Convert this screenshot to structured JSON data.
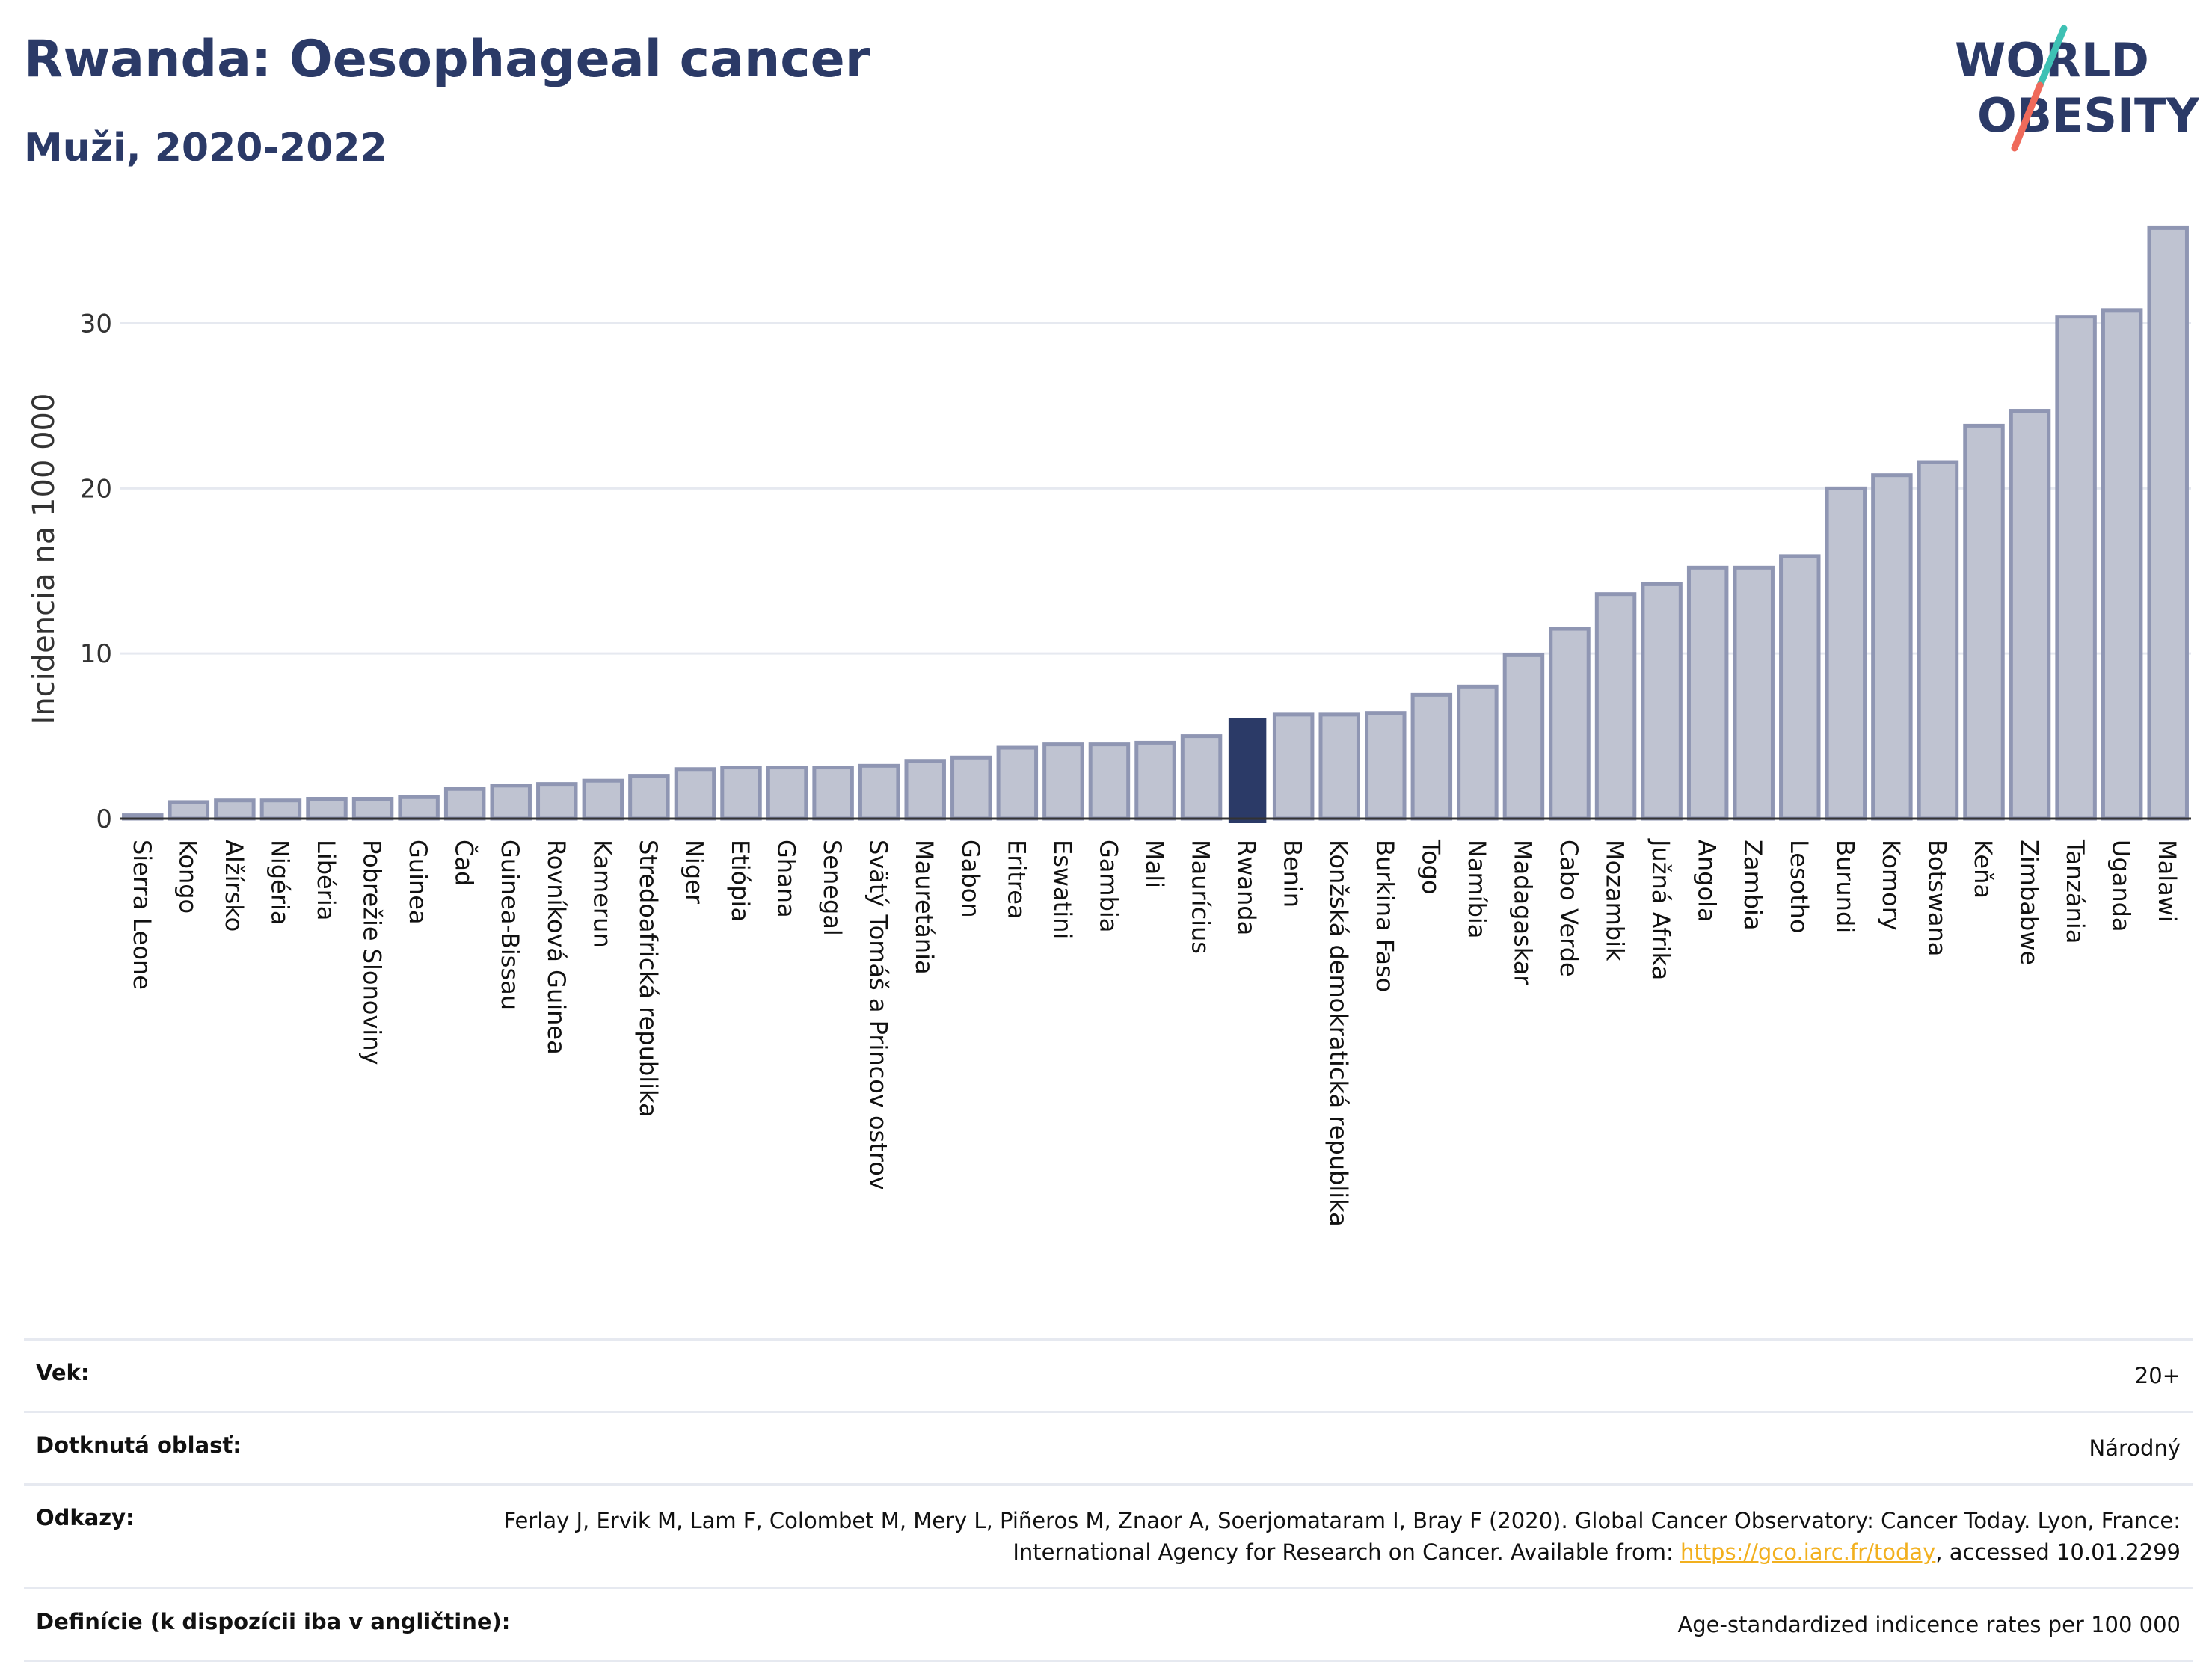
{
  "header": {
    "title": "Rwanda: Oesophageal cancer",
    "subtitle": "Muži, 2020-2022"
  },
  "logo": {
    "line1": "WORLD",
    "line2": "OBESITY",
    "slash_colors": [
      "#3ec1b4",
      "#ef6a5b"
    ]
  },
  "colors": {
    "bar": "#bfc3d1",
    "bar_border": "#8f96b3",
    "highlight": "#2b3a67",
    "grid": "#e6e9f0",
    "axis": "#333333",
    "text": "#2b3a67"
  },
  "chart_data": {
    "type": "bar",
    "ylabel": "Incidencia na 100 000",
    "ylim": [
      0,
      36
    ],
    "yticks": [
      0,
      10,
      20,
      30
    ],
    "grid": true,
    "highlight": "Rwanda",
    "categories": [
      "Sierra Leone",
      "Kongo",
      "Alžírsko",
      "Nigéria",
      "Libéria",
      "Pobrežie Slonoviny",
      "Guinea",
      "Čad",
      "Guinea-Bissau",
      "Rovníková Guinea",
      "Kamerun",
      "Stredoafrická republika",
      "Niger",
      "Etiópia",
      "Ghana",
      "Senegal",
      "Svätý Tomáš a Princov ostrov",
      "Mauretánia",
      "Gabon",
      "Eritrea",
      "Eswatini",
      "Gambia",
      "Mali",
      "Maurícius",
      "Rwanda",
      "Benin",
      "Konžská demokratická republika",
      "Burkina Faso",
      "Togo",
      "Namíbia",
      "Madagaskar",
      "Cabo Verde",
      "Mozambik",
      "Južná Afrika",
      "Angola",
      "Zambia",
      "Lesotho",
      "Burundi",
      "Komory",
      "Botswana",
      "Keňa",
      "Zimbabwe",
      "Tanzánia",
      "Uganda",
      "Malawi"
    ],
    "values": [
      0.2,
      1.0,
      1.1,
      1.1,
      1.2,
      1.2,
      1.3,
      1.8,
      2.0,
      2.1,
      2.3,
      2.6,
      3.0,
      3.1,
      3.1,
      3.1,
      3.2,
      3.5,
      3.7,
      4.3,
      4.5,
      4.5,
      4.6,
      5.0,
      6.1,
      6.3,
      6.3,
      6.4,
      7.5,
      8.0,
      9.9,
      11.5,
      13.6,
      14.2,
      15.2,
      15.2,
      15.9,
      20.0,
      20.8,
      21.6,
      23.8,
      24.7,
      30.4,
      30.8,
      35.8
    ]
  },
  "info": {
    "age_label": "Vek:",
    "age_value": "20+",
    "area_label": "Dotknutá oblasť:",
    "area_value": "Národný",
    "refs_label": "Odkazy:",
    "refs_text_1": "Ferlay J, Ervik M, Lam F, Colombet M, Mery L, Piñeros M, Znaor A, Soerjomataram I, Bray F (2020). Global Cancer Observatory: Cancer Today. Lyon, France: International Agency for Research on Cancer. Available from: ",
    "refs_link": "https://gco.iarc.fr/today",
    "refs_text_2": ", accessed 10.01.2299",
    "def_label": "Definície (k dispozícii iba v angličtine):",
    "def_value": "Age-standardized indicence rates per 100 000"
  }
}
